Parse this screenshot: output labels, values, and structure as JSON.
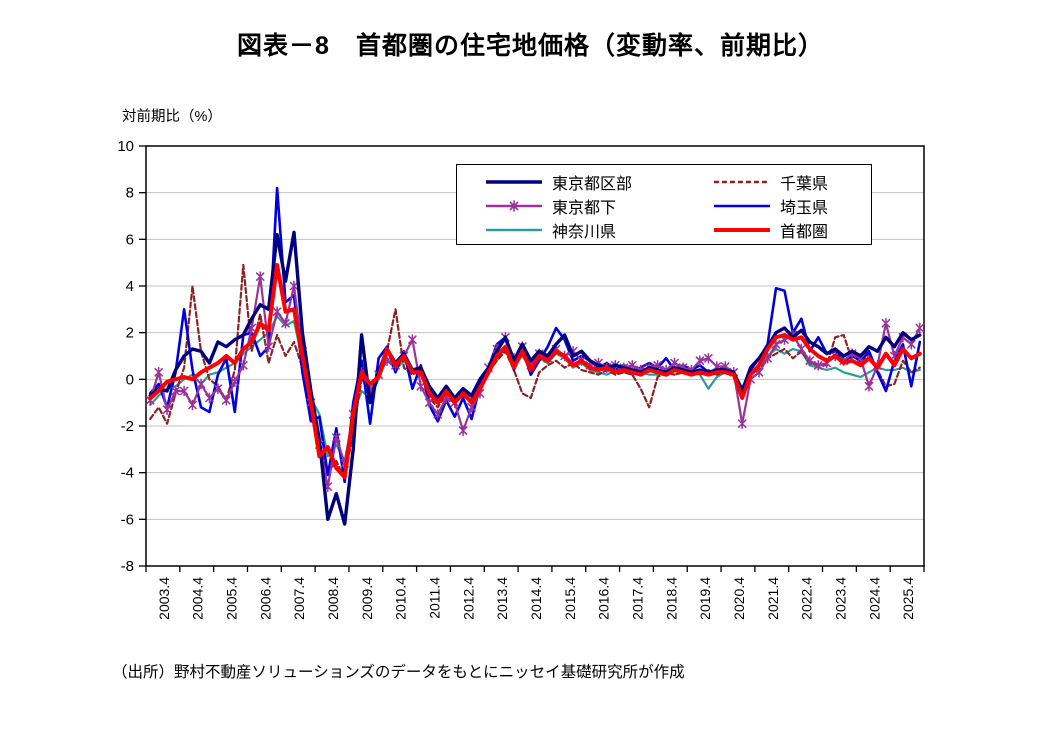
{
  "title": "図表－8　首都圏の住宅地価格（変動率、前期比）",
  "axis_unit_label": "対前期比（%）",
  "source_note": "（出所）野村不動産ソリューションズのデータをもとにニッセイ基礎研究所が作成",
  "colors": {
    "gridline": "#C3C3C3",
    "axis": "#000000",
    "background": "#FFFFFF"
  },
  "chart_data": {
    "type": "line",
    "title": "図表－8　首都圏の住宅地価格（変動率、前期比）",
    "ylabel": "対前期比（%）",
    "ylim": [
      -8,
      10
    ],
    "y_ticks": [
      10,
      8,
      6,
      4,
      2,
      0,
      -2,
      -4,
      -6,
      -8
    ],
    "grid": "horizontal",
    "legend_position": "top-center-inside-two-columns",
    "x_unit": "quarter",
    "points_per_label": 4,
    "n_points": 92,
    "x_tick_labels": [
      "2003.4",
      "2004.4",
      "2005.4",
      "2006.4",
      "2007.4",
      "2008.4",
      "2009.4",
      "2010.4",
      "2011.4",
      "2012.4",
      "2013.4",
      "2014.4",
      "2015.4",
      "2016.4",
      "2017.4",
      "2018.4",
      "2019.4",
      "2020.4",
      "2021.4",
      "2022.4",
      "2023.4",
      "2024.4",
      "2025.4"
    ],
    "series": [
      {
        "key": "tokyo-kubu",
        "name": "東京都区部",
        "color": "#00007E",
        "width": 3.4,
        "style": "solid",
        "marker": "none",
        "z": 5,
        "values": [
          -0.7,
          -0.4,
          -0.5,
          0.4,
          1.0,
          1.3,
          1.2,
          0.7,
          1.6,
          1.4,
          1.7,
          1.9,
          2.6,
          3.2,
          3.0,
          6.2,
          4.2,
          6.3,
          2.0,
          -0.5,
          -2.6,
          -6.0,
          -4.9,
          -6.2,
          -3.0,
          1.9,
          -1.0,
          0.3,
          1.3,
          0.7,
          1.1,
          0.4,
          0.5,
          -0.3,
          -0.8,
          -0.3,
          -0.8,
          -0.4,
          -0.7,
          0.0,
          0.5,
          1.2,
          1.8,
          0.8,
          1.5,
          0.8,
          1.2,
          1.0,
          1.5,
          1.9,
          1.0,
          1.2,
          0.8,
          0.6,
          0.5,
          0.6,
          0.5,
          0.4,
          0.3,
          0.5,
          0.4,
          0.3,
          0.5,
          0.4,
          0.3,
          0.4,
          0.3,
          0.4,
          0.4,
          0.3,
          -0.5,
          0.5,
          0.9,
          1.4,
          2.0,
          2.2,
          1.8,
          2.1,
          1.6,
          1.4,
          1.1,
          1.3,
          1.0,
          1.2,
          1.0,
          1.4,
          1.2,
          1.8,
          1.4,
          2.0,
          1.7,
          1.9
        ]
      },
      {
        "key": "tokyo-toka",
        "name": "東京都下",
        "color": "#993399",
        "width": 2.2,
        "style": "solid",
        "marker": "asterisk",
        "z": 4,
        "values": [
          -0.9,
          0.3,
          -1.3,
          -0.5,
          -0.5,
          -1.1,
          -0.2,
          -0.8,
          -0.4,
          -0.9,
          -0.1,
          0.6,
          2.2,
          4.4,
          1.4,
          2.9,
          2.4,
          4.0,
          1.2,
          -1.0,
          -2.8,
          -4.6,
          -2.5,
          -3.6,
          -1.5,
          0.3,
          -0.5,
          0.2,
          0.8,
          0.6,
          1.0,
          1.7,
          -0.3,
          -1.0,
          -1.5,
          -0.8,
          -1.0,
          -2.2,
          -1.2,
          -0.6,
          0.5,
          1.3,
          1.8,
          0.9,
          1.4,
          0.6,
          1.1,
          0.9,
          1.3,
          1.0,
          1.2,
          0.8,
          0.6,
          0.7,
          0.5,
          0.6,
          0.5,
          0.6,
          0.4,
          0.5,
          0.6,
          0.4,
          0.7,
          0.5,
          0.4,
          0.8,
          0.9,
          0.55,
          0.55,
          0.3,
          -1.9,
          0.0,
          0.3,
          0.9,
          1.5,
          1.7,
          1.9,
          1.3,
          0.8,
          0.6,
          0.7,
          1.0,
          0.8,
          1.1,
          0.9,
          -0.3,
          0.6,
          2.4,
          1.0,
          1.8,
          1.5,
          2.2
        ]
      },
      {
        "key": "kanagawa",
        "name": "神奈川県",
        "color": "#2E9B9B",
        "width": 2.2,
        "style": "solid",
        "marker": "none",
        "z": 1,
        "values": [
          -1.1,
          -0.7,
          -0.4,
          -0.3,
          0.0,
          0.2,
          -0.2,
          0.2,
          0.3,
          0.5,
          0.7,
          1.1,
          1.4,
          1.7,
          2.0,
          2.7,
          2.3,
          2.5,
          0.8,
          -0.8,
          -1.5,
          -3.3,
          -2.8,
          -3.5,
          -1.5,
          -0.5,
          -0.8,
          0.0,
          0.9,
          0.4,
          0.8,
          0.3,
          0.2,
          -0.5,
          -0.9,
          -0.6,
          -0.9,
          -0.7,
          -0.9,
          -0.3,
          0.4,
          0.9,
          1.3,
          0.6,
          1.0,
          0.5,
          0.9,
          0.7,
          1.1,
          0.9,
          0.5,
          0.7,
          0.4,
          0.3,
          0.2,
          0.4,
          0.3,
          0.2,
          0.3,
          0.2,
          0.2,
          0.3,
          0.2,
          0.3,
          0.3,
          0.2,
          -0.4,
          0.1,
          0.3,
          0.2,
          -0.6,
          0.2,
          0.6,
          1.0,
          1.3,
          1.1,
          1.3,
          1.2,
          0.6,
          0.5,
          0.4,
          0.5,
          0.3,
          0.2,
          0.1,
          0.3,
          0.5,
          0.4,
          0.4,
          0.5,
          0.3,
          0.4
        ]
      },
      {
        "key": "chiba",
        "name": "千葉県",
        "color": "#892424",
        "width": 2.2,
        "style": "dashed",
        "marker": "none",
        "z": 2,
        "values": [
          -1.7,
          -1.2,
          -1.9,
          -0.6,
          0.5,
          4.0,
          1.2,
          0.0,
          -0.3,
          -0.9,
          0.4,
          4.9,
          1.2,
          2.8,
          0.7,
          1.9,
          1.0,
          1.6,
          0.5,
          -1.5,
          -2.8,
          -4.0,
          -3.5,
          -4.3,
          -2.2,
          0.0,
          -0.5,
          0.3,
          1.2,
          3.0,
          0.5,
          0.2,
          0.4,
          -0.8,
          -1.2,
          -0.6,
          -1.0,
          -0.5,
          -0.8,
          -0.2,
          0.3,
          0.8,
          1.2,
          0.4,
          -0.6,
          -0.8,
          0.3,
          0.6,
          0.8,
          0.5,
          0.7,
          0.4,
          0.3,
          0.2,
          0.4,
          0.2,
          0.3,
          0.2,
          -0.4,
          -1.2,
          0.1,
          0.3,
          0.2,
          0.3,
          0.3,
          0.2,
          0.4,
          0.2,
          0.3,
          0.2,
          -0.7,
          0.2,
          0.4,
          0.9,
          1.1,
          1.3,
          0.9,
          1.2,
          0.7,
          0.6,
          0.6,
          1.8,
          1.9,
          0.8,
          0.7,
          1.1,
          0.4,
          -0.3,
          -0.2,
          0.8,
          0.3,
          0.5
        ]
      },
      {
        "key": "saitama",
        "name": "埼玉県",
        "color": "#0000DC",
        "width": 2.6,
        "style": "solid",
        "marker": "none",
        "z": 3,
        "values": [
          -0.6,
          -0.2,
          -1.2,
          0.3,
          3.0,
          0.4,
          -1.2,
          -1.4,
          0.2,
          0.9,
          -1.4,
          1.9,
          2.0,
          1.0,
          1.4,
          8.2,
          3.3,
          3.6,
          0.3,
          -1.8,
          -1.6,
          -4.1,
          -2.1,
          -4.4,
          -1.0,
          0.8,
          -1.9,
          0.9,
          1.4,
          0.3,
          1.2,
          -0.4,
          0.6,
          -1.1,
          -1.8,
          -0.9,
          -1.6,
          -0.8,
          -1.7,
          -0.3,
          0.5,
          1.5,
          1.8,
          0.4,
          1.3,
          0.2,
          0.8,
          1.4,
          2.2,
          1.7,
          0.8,
          1.0,
          0.8,
          0.5,
          0.7,
          0.4,
          0.6,
          0.4,
          0.5,
          0.7,
          0.5,
          0.9,
          0.4,
          0.6,
          0.4,
          0.6,
          0.3,
          0.4,
          0.5,
          0.3,
          -0.4,
          0.4,
          0.9,
          1.5,
          3.9,
          3.8,
          2.0,
          2.6,
          1.2,
          1.8,
          1.1,
          1.2,
          0.8,
          1.0,
          0.8,
          1.2,
          0.3,
          -0.5,
          0.8,
          1.5,
          -0.3,
          1.6
        ]
      },
      {
        "key": "shutoken",
        "name": "首都圏",
        "color": "#FF0000",
        "width": 4.0,
        "style": "solid",
        "marker": "none",
        "z": 6,
        "values": [
          -0.8,
          -0.5,
          -0.1,
          0.0,
          0.1,
          0.0,
          0.3,
          0.5,
          0.7,
          1.0,
          0.7,
          1.3,
          1.6,
          2.4,
          2.1,
          4.9,
          2.9,
          3.0,
          1.0,
          -1.0,
          -3.3,
          -2.9,
          -3.8,
          -4.2,
          -1.5,
          0.3,
          -0.2,
          0.1,
          1.3,
          0.6,
          1.0,
          0.3,
          0.3,
          -0.6,
          -1.0,
          -0.5,
          -1.0,
          -0.6,
          -1.0,
          -0.4,
          0.3,
          1.0,
          1.4,
          0.5,
          1.2,
          0.4,
          1.0,
          0.8,
          1.2,
          1.0,
          0.6,
          0.8,
          0.5,
          0.4,
          0.5,
          0.3,
          0.4,
          0.3,
          0.2,
          0.4,
          0.3,
          0.2,
          0.4,
          0.3,
          0.2,
          0.3,
          0.2,
          0.3,
          0.3,
          0.2,
          -0.8,
          0.2,
          0.6,
          1.3,
          1.8,
          1.9,
          1.7,
          1.8,
          1.3,
          1.0,
          0.8,
          1.0,
          0.7,
          0.8,
          0.6,
          0.9,
          0.5,
          1.1,
          0.6,
          1.3,
          0.9,
          1.1
        ]
      }
    ],
    "legend_order": [
      "tokyo-kubu",
      "tokyo-toka",
      "kanagawa",
      "chiba",
      "saitama",
      "shutoken"
    ]
  }
}
